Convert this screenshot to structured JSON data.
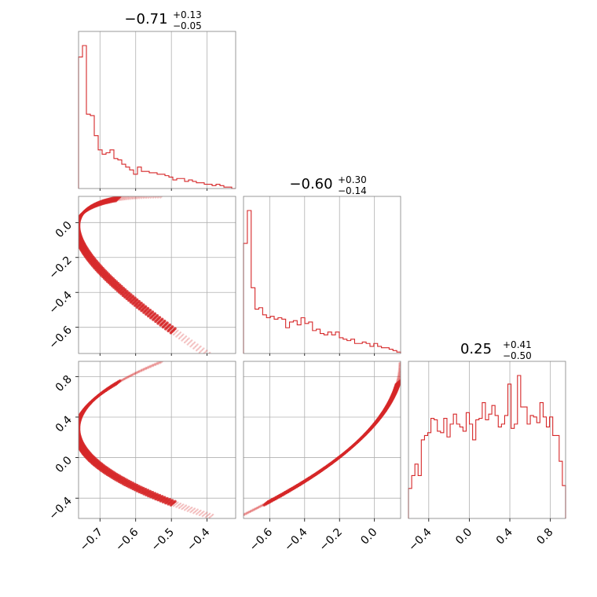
{
  "chart_data": {
    "type": "corner",
    "color": "#d62728",
    "grid": true,
    "parameters": [
      {
        "id": "p0",
        "title": {
          "median": "−0.71",
          "plus": "+0.13",
          "minus": "−0.05"
        },
        "range": [
          -0.76,
          -0.32
        ],
        "ticks": [
          -0.7,
          -0.6,
          -0.5,
          -0.4
        ],
        "tick_labels": [
          "−0.7",
          "−0.6",
          "−0.5",
          "−0.4"
        ]
      },
      {
        "id": "p1",
        "title": {
          "median": "−0.60",
          "plus": "+0.30",
          "minus": "−0.14"
        },
        "range": [
          -0.75,
          0.15
        ],
        "ticks": [
          -0.6,
          -0.4,
          -0.2,
          0.0
        ],
        "tick_labels": [
          "−0.6",
          "−0.4",
          "−0.2",
          "0.0"
        ]
      },
      {
        "id": "p2",
        "title": {
          "median": "0.25",
          "plus": "+0.41",
          "minus": "−0.50"
        },
        "range": [
          -0.6,
          0.95
        ],
        "ticks": [
          -0.4,
          0.0,
          0.4,
          0.8
        ],
        "tick_labels": [
          "−0.4",
          "0.0",
          "0.4",
          "0.8"
        ]
      }
    ],
    "histograms": {
      "p0": [
        0.92,
        1.0,
        0.52,
        0.51,
        0.37,
        0.27,
        0.24,
        0.25,
        0.27,
        0.21,
        0.2,
        0.17,
        0.15,
        0.13,
        0.1,
        0.15,
        0.12,
        0.12,
        0.11,
        0.11,
        0.1,
        0.1,
        0.09,
        0.08,
        0.06,
        0.07,
        0.07,
        0.05,
        0.06,
        0.05,
        0.04,
        0.04,
        0.03,
        0.03,
        0.02,
        0.03,
        0.02,
        0.01,
        0.01,
        0.0
      ],
      "p1": [
        0.77,
        1.0,
        0.46,
        0.31,
        0.32,
        0.27,
        0.25,
        0.26,
        0.24,
        0.25,
        0.24,
        0.18,
        0.22,
        0.23,
        0.2,
        0.25,
        0.21,
        0.22,
        0.16,
        0.17,
        0.14,
        0.13,
        0.15,
        0.13,
        0.15,
        0.11,
        0.1,
        0.09,
        0.1,
        0.07,
        0.07,
        0.08,
        0.07,
        0.05,
        0.07,
        0.05,
        0.04,
        0.04,
        0.03,
        0.02,
        0.01
      ],
      "p2": [
        0.21,
        0.3,
        0.38,
        0.3,
        0.55,
        0.58,
        0.6,
        0.7,
        0.69,
        0.61,
        0.6,
        0.7,
        0.57,
        0.66,
        0.73,
        0.66,
        0.64,
        0.61,
        0.74,
        0.66,
        0.55,
        0.69,
        0.7,
        0.81,
        0.69,
        0.73,
        0.79,
        0.72,
        0.64,
        0.66,
        0.72,
        0.94,
        0.63,
        0.66,
        1.0,
        0.78,
        0.78,
        0.66,
        0.72,
        0.71,
        0.67,
        0.81,
        0.71,
        0.64,
        0.71,
        0.58,
        0.58,
        0.4,
        0.23
      ]
    },
    "scatter_curve": {
      "description_free": true,
      "t": [
        -0.55,
        0.97
      ],
      "p0": "-0.76 + 0.45*(t-0.27)^2",
      "p1": "-0.75 + 0.9*(1 - (t-0.95)^2/(1.55^2))"
    }
  }
}
